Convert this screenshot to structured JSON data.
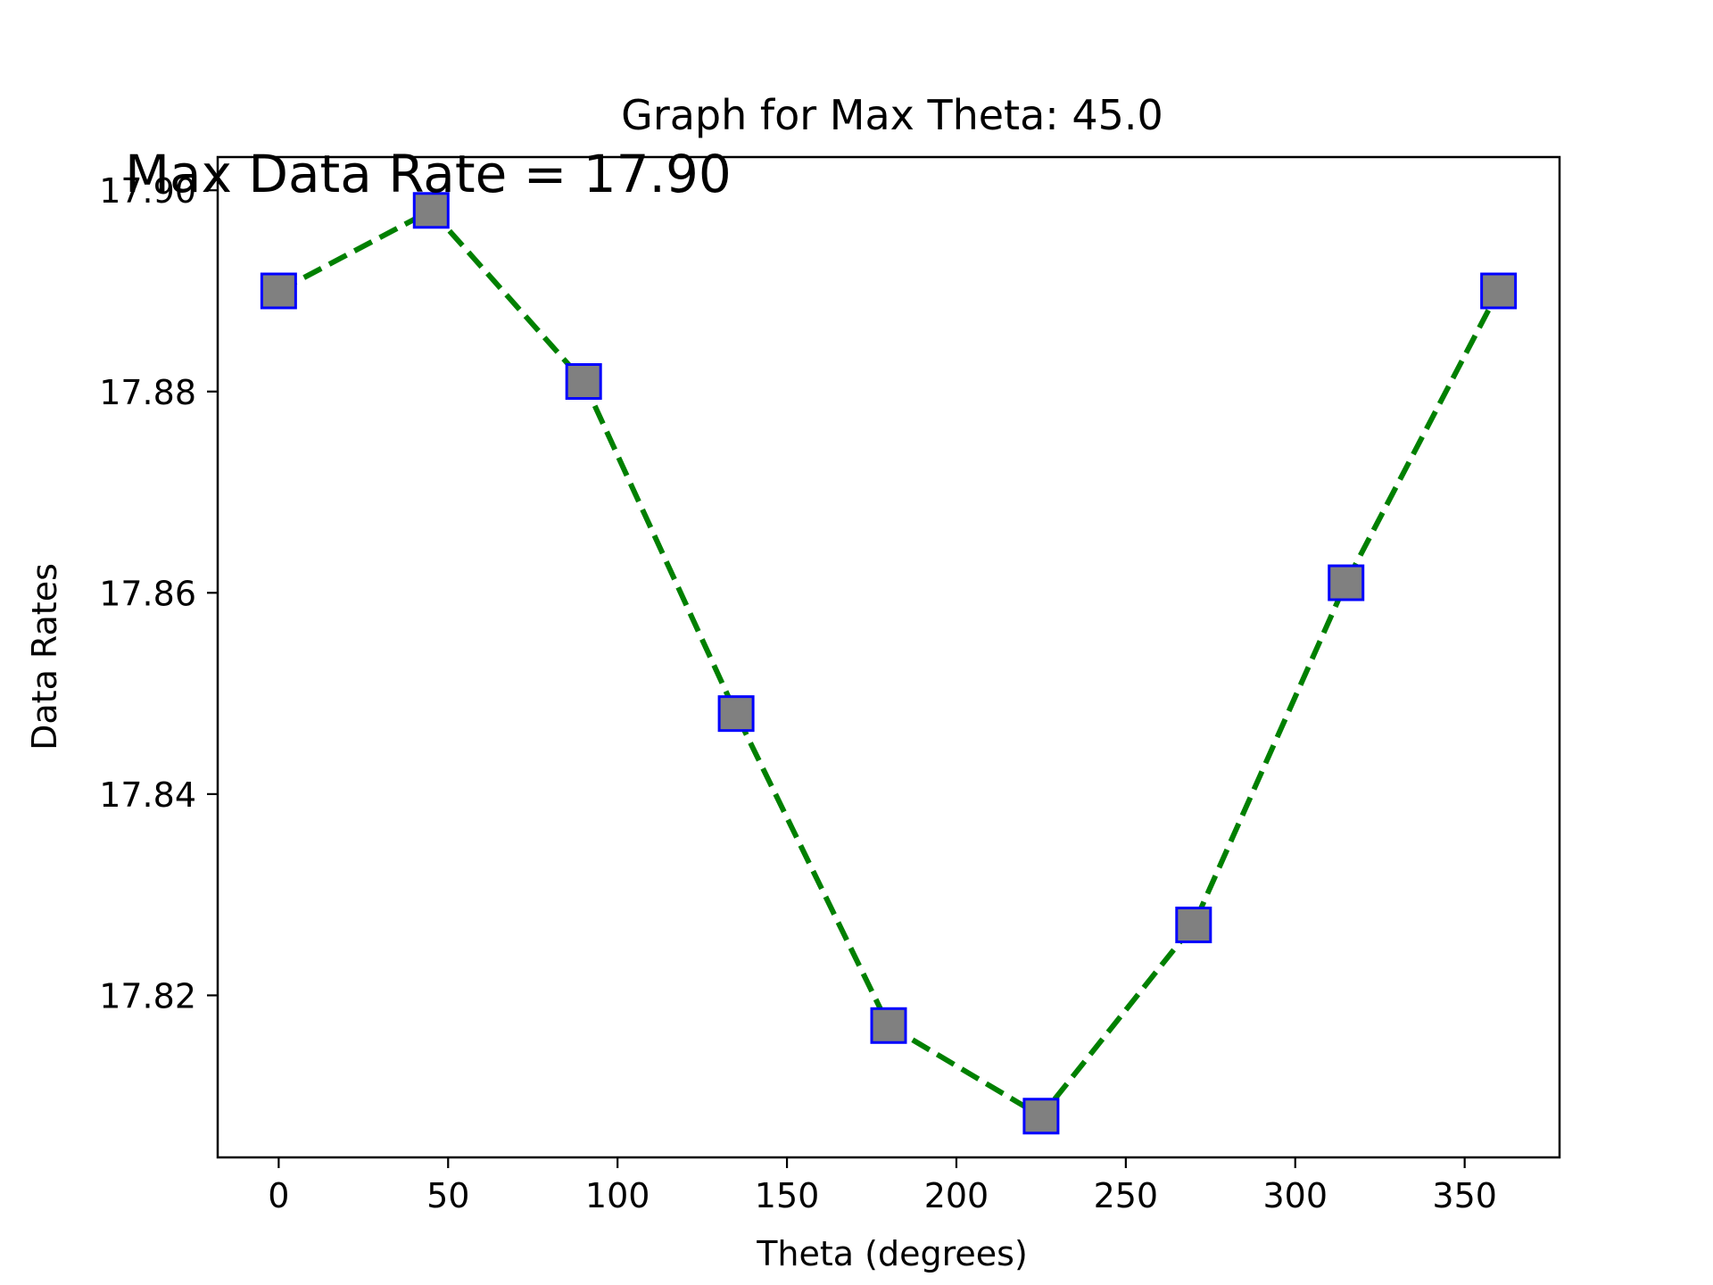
{
  "chart_data": {
    "type": "line",
    "title": "Graph for Max Theta: 45.0",
    "xlabel": "Theta (degrees)",
    "ylabel": "Data Rates",
    "annotation": "Max Data Rate = 17.90",
    "x": [
      0,
      45,
      90,
      135,
      180,
      225,
      270,
      315,
      360
    ],
    "series": [
      {
        "values": [
          17.89,
          17.898,
          17.881,
          17.848,
          17.817,
          17.808,
          17.827,
          17.861,
          17.89
        ],
        "line_color": "#008000",
        "line_style": "dashed",
        "marker": "square",
        "marker_face_color": "#808080",
        "marker_edge_color": "#0000ff"
      }
    ],
    "xlim": [
      -18,
      378
    ],
    "ylim": [
      17.8039,
      17.9033
    ],
    "xticks": [
      0,
      50,
      100,
      150,
      200,
      250,
      300,
      350
    ],
    "xtick_labels": [
      "0",
      "50",
      "100",
      "150",
      "200",
      "250",
      "300",
      "350"
    ],
    "yticks": [
      17.82,
      17.84,
      17.86,
      17.88,
      17.9
    ],
    "ytick_labels": [
      "17.82",
      "17.84",
      "17.86",
      "17.88",
      "17.90"
    ],
    "grid": false,
    "legend": false
  }
}
